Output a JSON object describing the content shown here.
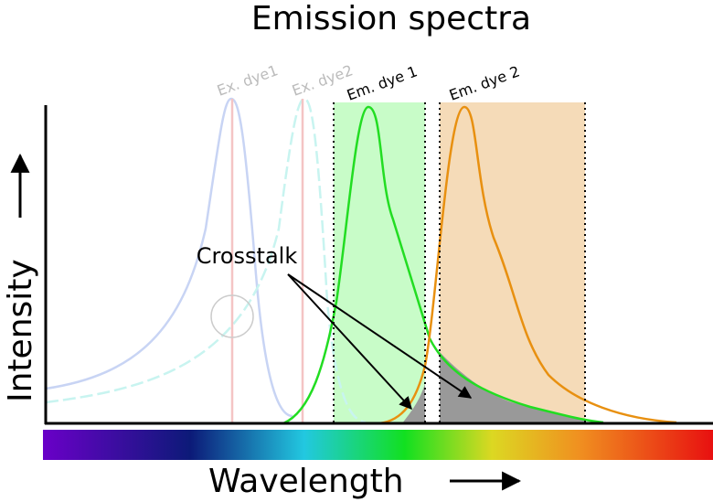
{
  "title": "Emission spectra",
  "labels": {
    "ex_dye1": "Ex. dye1",
    "ex_dye2": "Ex. dye2",
    "em_dye1": "Em. dye 1",
    "em_dye2": "Em. dye 2",
    "crosstalk": "Crosstalk"
  },
  "axes": {
    "y": "Intensity",
    "x": "Wavelength"
  }
}
